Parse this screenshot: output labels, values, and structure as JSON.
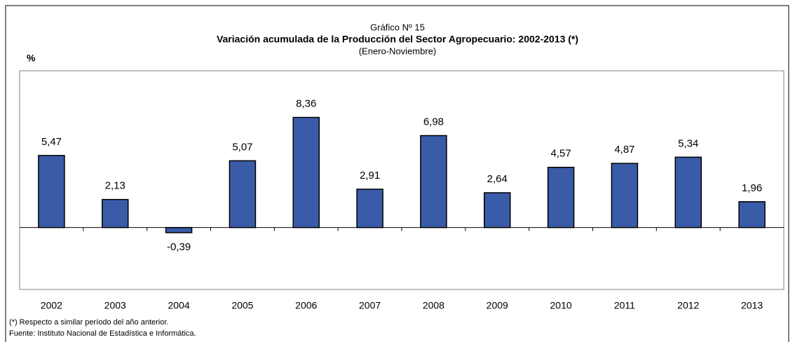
{
  "chart_data": {
    "type": "bar",
    "subtitle_top": "Gráfico Nº 15",
    "title": "Variación acumulada de la Producción del Sector Agropecuario: 2002-2013 (*)",
    "subtitle": "(Enero-Noviembre)",
    "y_label": "%",
    "categories": [
      "2002",
      "2003",
      "2004",
      "2005",
      "2006",
      "2007",
      "2008",
      "2009",
      "2010",
      "2011",
      "2012",
      "2013"
    ],
    "values": [
      5.47,
      2.13,
      -0.39,
      5.07,
      8.36,
      2.91,
      6.98,
      2.64,
      4.57,
      4.87,
      5.34,
      1.96
    ],
    "value_labels": [
      "5,47",
      "2,13",
      "-0,39",
      "5,07",
      "8,36",
      "2,91",
      "6,98",
      "2,64",
      "4,57",
      "4,87",
      "5,34",
      "1,96"
    ],
    "color": "#3a5ba8",
    "ylim": [
      -4.7,
      11.9
    ],
    "notes": [
      "(*) Respecto a similar período del año anterior.",
      "Fuente: Instituto Nacional de Estadística e  Informática."
    ]
  }
}
